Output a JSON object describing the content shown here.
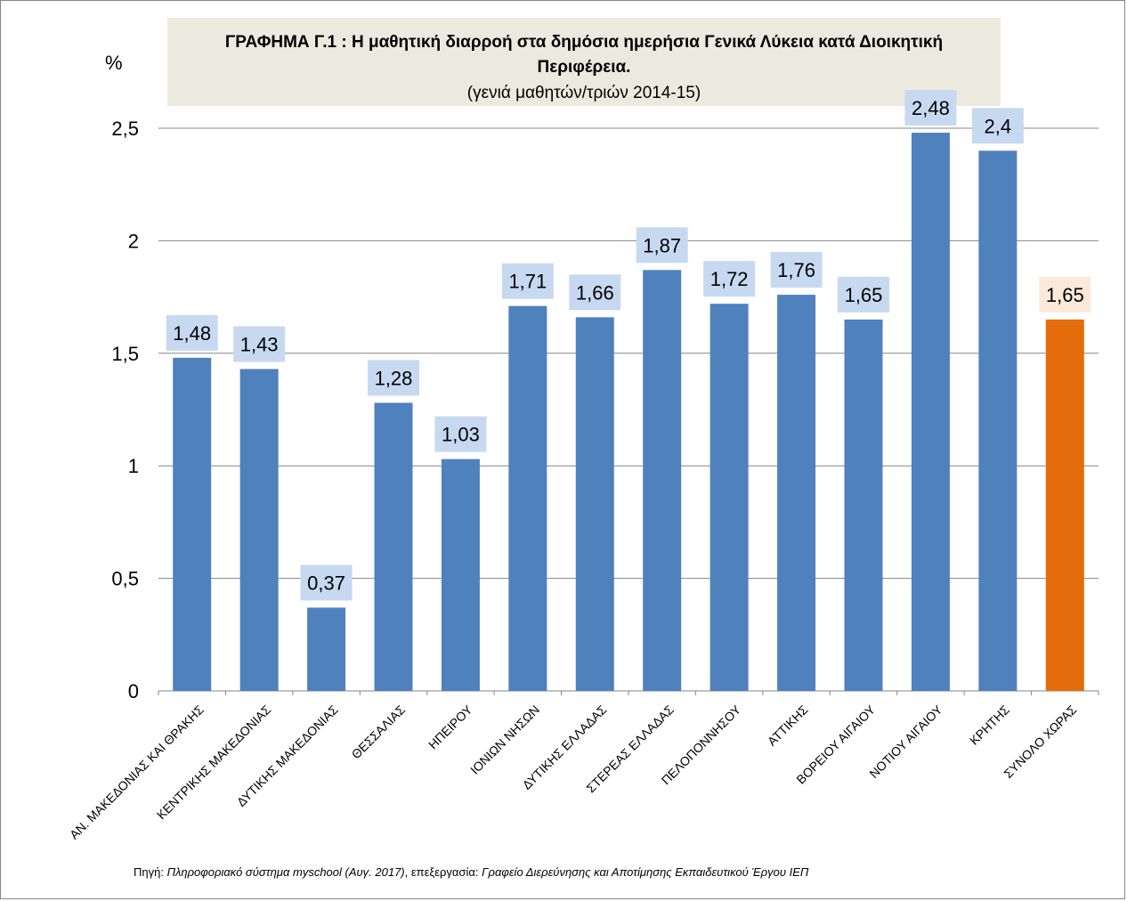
{
  "chart_data": {
    "type": "bar",
    "title": "ΓΡΑΦΗΜΑ Γ.1 : Η μαθητική διαρροή στα δημόσια ημερήσια Γενικά Λύκεια κατά Διοικητική Περιφέρεια.",
    "title_line1": "ΓΡΑΦΗΜΑ Γ.1 : Η μαθητική διαρροή στα δημόσια ημερήσια Γενικά Λύκεια κατά Διοικητική",
    "title_line2": "Περιφέρεια.",
    "subtitle": "(γενιά μαθητών/τριών 2014-15)",
    "ylabel": "%",
    "ylim": [
      0,
      2.5
    ],
    "yticks": [
      "0",
      "0,5",
      "1",
      "1,5",
      "2",
      "2,5"
    ],
    "grid": true,
    "categories": [
      "ΑΝ. ΜΑΚΕΔΟΝΙΑΣ ΚΑΙ ΘΡΑΚΗΣ",
      "ΚΕΝΤΡΙΚΗΣ ΜΑΚΕΔΟΝΙΑΣ",
      "ΔΥΤΙΚΗΣ ΜΑΚΕΔΟΝΙΑΣ",
      "ΘΕΣΣΑΛΙΑΣ",
      "ΗΠΕΙΡΟΥ",
      "ΙΟΝΙΩΝ ΝΗΣΩΝ",
      "ΔΥΤΙΚΗΣ ΕΛΛΑΔΑΣ",
      "ΣΤΕΡΕΑΣ ΕΛΛΑΔΑΣ",
      "ΠΕΛΟΠΟΝΝΗΣΟΥ",
      "ΑΤΤΙΚΗΣ",
      "ΒΟΡΕΙΟΥ ΑΙΓΑΙΟΥ",
      "ΝΟΤΙΟΥ ΑΙΓΑΙΟΥ",
      "ΚΡΗΤΗΣ",
      "ΣΥΝΟΛΟ ΧΩΡΑΣ"
    ],
    "values": [
      1.48,
      1.43,
      0.37,
      1.28,
      1.03,
      1.71,
      1.66,
      1.87,
      1.72,
      1.76,
      1.65,
      2.48,
      2.4,
      1.65
    ],
    "data_labels": [
      "1,48",
      "1,43",
      "0,37",
      "1,28",
      "1,03",
      "1,71",
      "1,66",
      "1,87",
      "1,72",
      "1,76",
      "1,65",
      "2,48",
      "2,4",
      "1,65"
    ],
    "colors": {
      "bar": "#4F81BD",
      "bar_highlight": "#E46C0A",
      "label_bg": "#C6D9F1",
      "label_bg_highlight": "#FDE9D9",
      "title_bg": "#ECEADE",
      "grid": "#868686"
    },
    "highlight_index": 13
  },
  "source": {
    "prefix": "Πηγή: ",
    "system": "Πληροφοριακό σύστημα myschool (Αυγ. 2017)",
    "middle": ", επεξεργασία: ",
    "office": "Γραφείο Διερεύνησης και Αποτίμησης Εκπαιδευτικού Έργου ΙΕΠ"
  }
}
